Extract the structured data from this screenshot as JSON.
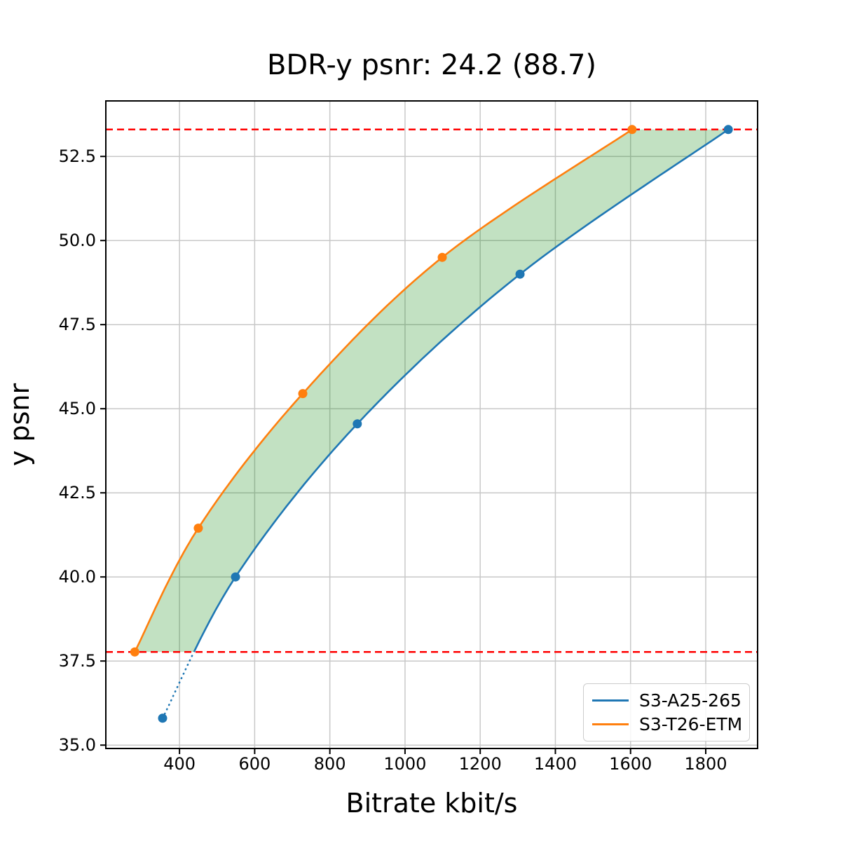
{
  "title": "BDR-y psnr: 24.2 (88.7)",
  "chart_data": {
    "type": "line",
    "title": "BDR-y psnr: 24.2 (88.7)",
    "xlabel": "Bitrate kbit/s",
    "ylabel": "y psnr",
    "xlim": [
      204,
      1938
    ],
    "ylim": [
      34.9,
      54.15
    ],
    "grid": true,
    "grid_color": "#c8c8c8",
    "spine_color": "#000000",
    "background_color": "#ffffff",
    "x_ticks": [
      400,
      600,
      800,
      1000,
      1200,
      1400,
      1600,
      1800
    ],
    "x_tick_labels": [
      "400",
      "600",
      "800",
      "1000",
      "1200",
      "1400",
      "1600",
      "1800"
    ],
    "y_ticks": [
      35.0,
      37.5,
      40.0,
      42.5,
      45.0,
      47.5,
      50.0,
      52.5
    ],
    "y_tick_labels": [
      "35.0",
      "37.5",
      "40.0",
      "42.5",
      "45.0",
      "47.5",
      "50.0",
      "52.5"
    ],
    "series": [
      {
        "name": "S3-A25-265",
        "color": "#1f77b4",
        "x": [
          355,
          549,
          873,
          1306,
          1860
        ],
        "y": [
          35.8,
          40.0,
          44.55,
          49.0,
          53.3
        ],
        "dotted_below_y": 37.77
      },
      {
        "name": "S3-T26-ETM",
        "color": "#ff7f0e",
        "x": [
          281,
          450,
          728,
          1099,
          1604
        ],
        "y": [
          37.77,
          41.45,
          45.45,
          49.5,
          53.3
        ]
      }
    ],
    "hlines": [
      {
        "y": 53.3,
        "color": "#ff0000",
        "style": "dashed"
      },
      {
        "y": 37.77,
        "color": "#ff0000",
        "style": "dashed"
      }
    ],
    "fill_between": {
      "between": [
        "S3-T26-ETM",
        "S3-A25-265"
      ],
      "y_range": [
        37.77,
        53.3
      ],
      "color": "#008000",
      "opacity": 0.24
    },
    "legend_position": "lower right"
  },
  "legend": {
    "items": [
      {
        "label": "S3-A25-265",
        "color": "#1f77b4"
      },
      {
        "label": "S3-T26-ETM",
        "color": "#ff7f0e"
      }
    ]
  }
}
